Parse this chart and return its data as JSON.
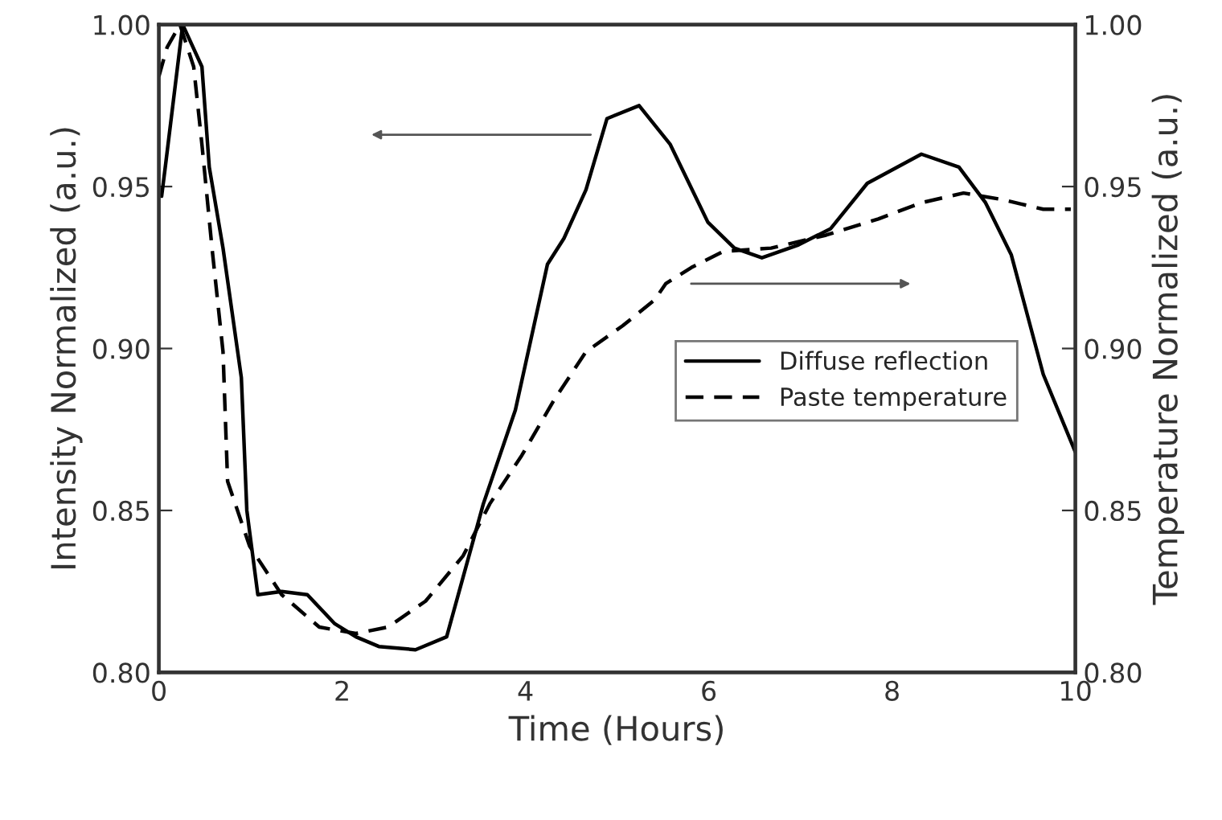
{
  "chart_data": {
    "type": "line",
    "xlabel": "Time (Hours)",
    "ylabel": "Intensity Normalized (a.u.)",
    "y2label": "Temperature Normalized (a.u.)",
    "xlim": [
      0,
      10
    ],
    "xticks": [
      0,
      2,
      4,
      6,
      8,
      10
    ],
    "ylim": [
      0.8,
      1.0
    ],
    "yticks": [
      {
        "value": 0.8,
        "label": "0.80"
      },
      {
        "value": 0.85,
        "label": "0.85"
      },
      {
        "value": 0.9,
        "label": "0.90"
      },
      {
        "value": 0.95,
        "label": "0.95"
      },
      {
        "value": 1.0,
        "label": "1.00"
      }
    ],
    "y2lim": [
      0.8,
      1.0
    ],
    "y2ticks": [
      {
        "value": 0.8,
        "label": "0.80"
      },
      {
        "value": 0.85,
        "label": "0.85"
      },
      {
        "value": 0.9,
        "label": "0.90"
      },
      {
        "value": 0.95,
        "label": "0.95"
      },
      {
        "value": 1.0,
        "label": "1.00"
      }
    ],
    "grid": false,
    "legend": "right",
    "marker": "none",
    "series": [
      {
        "name": "Diffuse reflection",
        "color": "#000000",
        "line_style": "solid",
        "x": [
          0.03,
          0.07,
          0.26,
          0.47,
          0.55,
          0.7,
          0.9,
          0.96,
          1.08,
          1.34,
          1.62,
          1.92,
          2.15,
          2.4,
          2.8,
          3.14,
          3.54,
          3.89,
          4.24,
          4.42,
          4.66,
          4.89,
          5.24,
          5.58,
          5.99,
          6.28,
          6.58,
          6.98,
          7.33,
          7.73,
          8.32,
          8.73,
          9.02,
          9.3,
          9.65,
          10.0
        ],
        "values": [
          0.947,
          0.956,
          1.0,
          0.987,
          0.956,
          0.931,
          0.891,
          0.85,
          0.824,
          0.825,
          0.824,
          0.815,
          0.811,
          0.808,
          0.807,
          0.811,
          0.852,
          0.881,
          0.926,
          0.934,
          0.949,
          0.971,
          0.975,
          0.963,
          0.939,
          0.931,
          0.928,
          0.932,
          0.937,
          0.951,
          0.96,
          0.956,
          0.945,
          0.929,
          0.892,
          0.868
        ]
      },
      {
        "name": "Paste temperature",
        "color": "#000000",
        "line_style": "dashed",
        "axis": "y2",
        "x": [
          0.0,
          0.09,
          0.23,
          0.38,
          0.47,
          0.58,
          0.7,
          0.73,
          0.75,
          0.99,
          1.34,
          1.75,
          2.15,
          2.5,
          2.91,
          3.32,
          3.61,
          3.96,
          4.31,
          4.66,
          5.06,
          5.41,
          5.53,
          5.81,
          6.16,
          6.68,
          7.28,
          7.85,
          8.32,
          8.78,
          9.2,
          9.65,
          9.95
        ],
        "values": [
          0.984,
          0.993,
          1.0,
          0.987,
          0.963,
          0.931,
          0.899,
          0.875,
          0.859,
          0.839,
          0.824,
          0.814,
          0.812,
          0.814,
          0.822,
          0.836,
          0.852,
          0.867,
          0.884,
          0.899,
          0.907,
          0.915,
          0.92,
          0.925,
          0.93,
          0.931,
          0.935,
          0.94,
          0.945,
          0.948,
          0.946,
          0.943,
          0.943
        ]
      }
    ]
  }
}
